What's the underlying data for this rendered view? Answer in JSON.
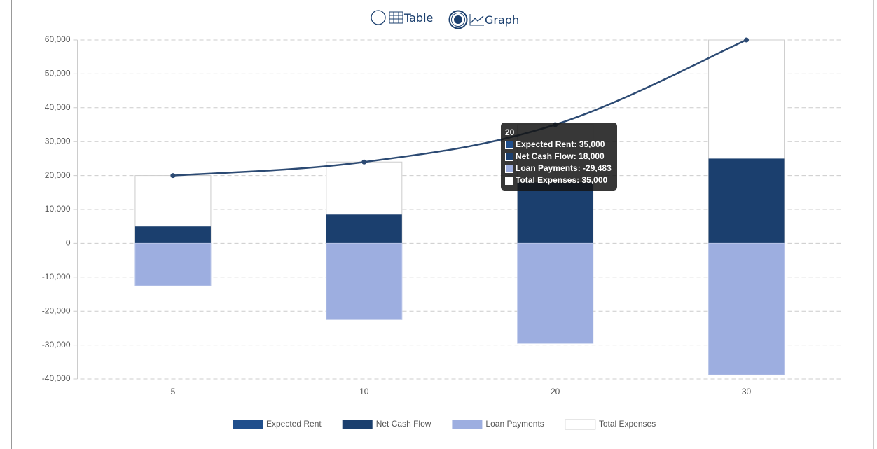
{
  "view_options": [
    "Table",
    "Graph"
  ],
  "chart_data": {
    "type": "bar-line",
    "categories": [
      "5",
      "10",
      "20",
      "30"
    ],
    "series": [
      {
        "name": "Expected Rent",
        "type": "line",
        "color": "#1f4e8c",
        "line_color": "#2c4a73",
        "values": [
          20000,
          24000,
          35000,
          60000
        ],
        "value_labels": [
          null,
          null,
          "35,000",
          null
        ]
      },
      {
        "name": "Net Cash Flow",
        "type": "bar",
        "color": "#1b3f6e",
        "values": [
          5000,
          8500,
          18000,
          25000
        ],
        "value_labels": [
          null,
          null,
          "18,000",
          null
        ]
      },
      {
        "name": "Loan Payments",
        "type": "bar",
        "color": "#9daee0",
        "values": [
          -12500,
          -22500,
          -29483,
          -38800
        ],
        "value_labels": [
          null,
          null,
          "-29,483",
          null
        ]
      },
      {
        "name": "Total Expenses",
        "type": "bar",
        "color": "#ffffff",
        "values": [
          20000,
          24000,
          35000,
          60000
        ],
        "value_labels": [
          null,
          null,
          "35,000",
          null
        ]
      }
    ],
    "ylim": [
      -40000,
      60000
    ],
    "yticks": [
      {
        "value": -40000,
        "label": "-40,000"
      },
      {
        "value": -30000,
        "label": "-30,000"
      },
      {
        "value": -20000,
        "label": "-20,000"
      },
      {
        "value": -10000,
        "label": "-10,000"
      },
      0,
      {
        "value": 10000,
        "label": "10,000"
      },
      {
        "value": 20000,
        "label": "20,000"
      },
      {
        "value": 30000,
        "label": "30,000"
      },
      {
        "value": 40000,
        "label": "40,000"
      },
      {
        "value": 50000,
        "label": "50,000"
      },
      {
        "value": 60000,
        "label": "60,000"
      }
    ],
    "grid": true,
    "legend": "bottom"
  }
}
